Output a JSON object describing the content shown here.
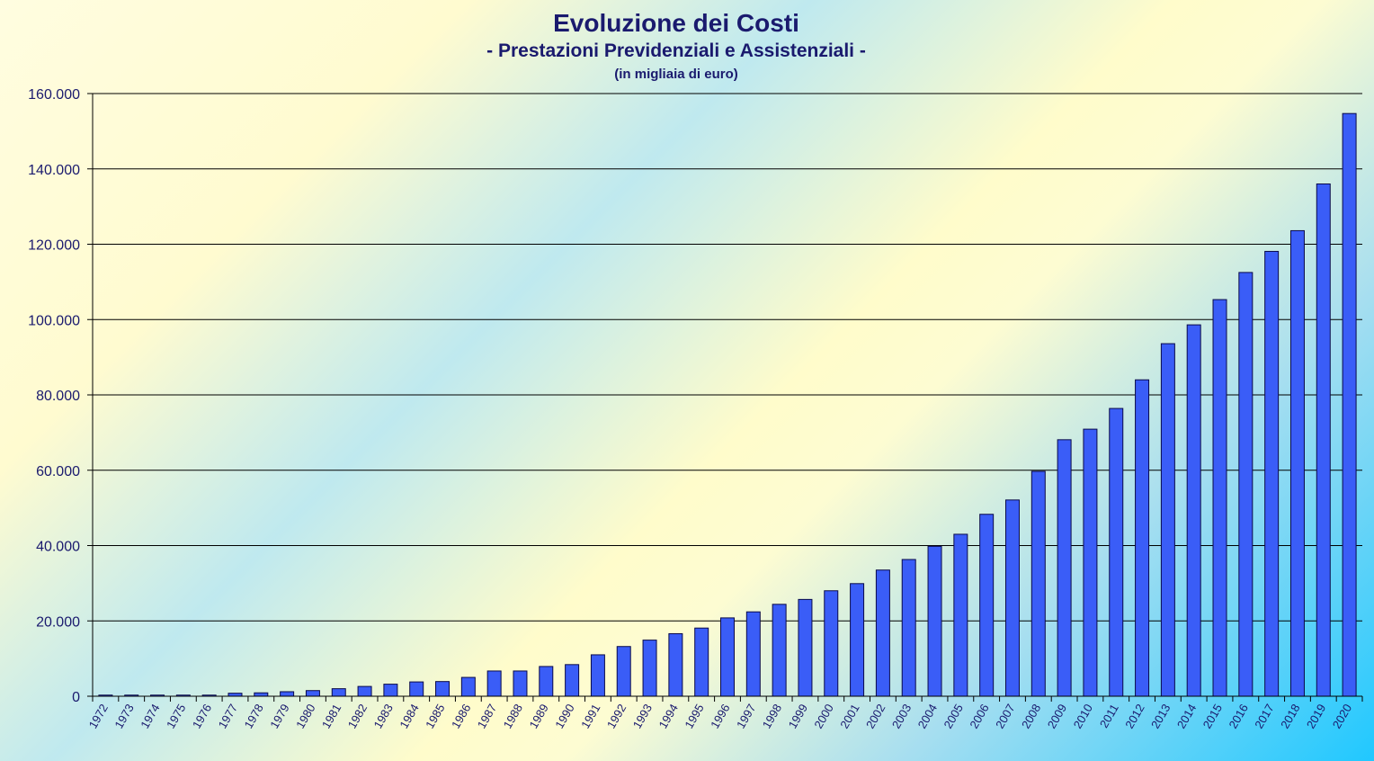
{
  "chart_data": {
    "type": "bar",
    "title": "Evoluzione dei Costi",
    "subtitle": "- Prestazioni Previdenziali e Assistenziali -",
    "unit_note": "(in migliaia di euro)",
    "xlabel": "",
    "ylabel": "",
    "ylim": [
      0,
      160000
    ],
    "yticks": [
      0,
      20000,
      40000,
      60000,
      80000,
      100000,
      120000,
      140000,
      160000
    ],
    "ytick_labels": [
      "0",
      "20.000",
      "40.000",
      "60.000",
      "80.000",
      "100.000",
      "120.000",
      "140.000",
      "160.000"
    ],
    "grid": true,
    "categories": [
      "1972",
      "1973",
      "1974",
      "1975",
      "1976",
      "1977",
      "1978",
      "1979",
      "1980",
      "1981",
      "1982",
      "1983",
      "1984",
      "1985",
      "1986",
      "1987",
      "1988",
      "1989",
      "1990",
      "1991",
      "1992",
      "1993",
      "1994",
      "1995",
      "1996",
      "1997",
      "1998",
      "1999",
      "2000",
      "2001",
      "2002",
      "2003",
      "2004",
      "2005",
      "2006",
      "2007",
      "2008",
      "2009",
      "2010",
      "2011",
      "2012",
      "2013",
      "2014",
      "2015",
      "2016",
      "2017",
      "2018",
      "2019",
      "2020"
    ],
    "values": [
      300,
      300,
      300,
      300,
      300,
      800,
      900,
      1200,
      1500,
      2000,
      2600,
      3200,
      3800,
      3900,
      5000,
      6700,
      6700,
      7900,
      8400,
      11000,
      13200,
      14900,
      16600,
      18100,
      20800,
      22400,
      24400,
      25700,
      28000,
      29900,
      33500,
      36300,
      39800,
      43000,
      48300,
      52100,
      59700,
      68100,
      70900,
      76400,
      84000,
      93600,
      98600,
      105300,
      112500,
      118100,
      123600,
      136000,
      154700
    ],
    "colors": {
      "bar": "#3a5df7",
      "bar_stroke": "#0a0a4a",
      "text": "#1a1a6e",
      "grid": "#000000"
    }
  }
}
